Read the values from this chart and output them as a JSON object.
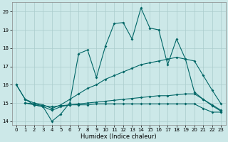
{
  "xlabel": "Humidex (Indice chaleur)",
  "bg_color": "#cce8e8",
  "grid_color": "#aacccc",
  "line_color": "#006666",
  "xlim": [
    -0.5,
    23.5
  ],
  "ylim": [
    13.8,
    20.5
  ],
  "yticks": [
    14,
    15,
    16,
    17,
    18,
    19,
    20
  ],
  "xticks": [
    0,
    1,
    2,
    3,
    4,
    5,
    6,
    7,
    8,
    9,
    10,
    11,
    12,
    13,
    14,
    15,
    16,
    17,
    18,
    19,
    20,
    21,
    22,
    23
  ],
  "line1_x": [
    0,
    1,
    2,
    3,
    4,
    5,
    6,
    7,
    8,
    9,
    10,
    11,
    12,
    13,
    14,
    15,
    16,
    17,
    18,
    19,
    20,
    21,
    22,
    23
  ],
  "line1_y": [
    16.0,
    15.2,
    14.9,
    14.8,
    14.0,
    14.4,
    15.0,
    17.7,
    17.9,
    16.4,
    18.1,
    19.35,
    19.4,
    18.5,
    20.2,
    19.1,
    19.0,
    17.1,
    18.5,
    17.4,
    15.6,
    15.2,
    14.9,
    14.6
  ],
  "line2_x": [
    0,
    1,
    2,
    3,
    4,
    5,
    6,
    7,
    8,
    9,
    10,
    11,
    12,
    13,
    14,
    15,
    16,
    17,
    18,
    19,
    20,
    21,
    22,
    23
  ],
  "line2_y": [
    16.0,
    15.2,
    15.0,
    14.9,
    14.7,
    14.9,
    15.2,
    15.5,
    15.8,
    16.0,
    16.3,
    16.5,
    16.7,
    16.9,
    17.1,
    17.2,
    17.3,
    17.4,
    17.5,
    17.4,
    17.3,
    16.5,
    15.7,
    14.95
  ],
  "line3_x": [
    1,
    2,
    3,
    4,
    5,
    6,
    7,
    8,
    9,
    10,
    11,
    12,
    13,
    14,
    15,
    16,
    17,
    18,
    19,
    20,
    21,
    22,
    23
  ],
  "line3_y": [
    15.0,
    14.95,
    14.85,
    14.8,
    14.85,
    14.9,
    14.95,
    15.0,
    15.05,
    15.1,
    15.15,
    15.2,
    15.25,
    15.3,
    15.35,
    15.4,
    15.4,
    15.45,
    15.5,
    15.5,
    15.2,
    14.85,
    14.55
  ],
  "line4_x": [
    1,
    2,
    3,
    4,
    5,
    6,
    7,
    8,
    9,
    10,
    11,
    12,
    13,
    14,
    15,
    16,
    17,
    18,
    19,
    20,
    21,
    22,
    23
  ],
  "line4_y": [
    15.0,
    14.9,
    14.8,
    14.6,
    14.8,
    14.9,
    14.9,
    14.9,
    14.95,
    14.95,
    14.95,
    14.95,
    14.95,
    14.95,
    14.95,
    14.95,
    14.95,
    14.95,
    14.95,
    14.95,
    14.7,
    14.5,
    14.5
  ]
}
